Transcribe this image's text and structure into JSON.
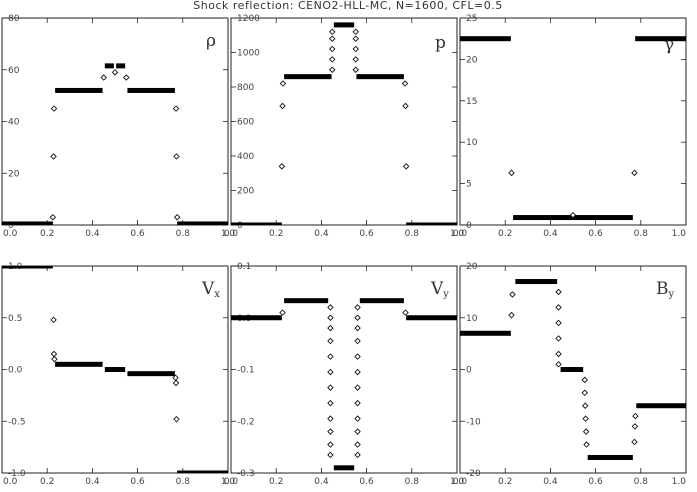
{
  "title": "Shock reflection: CENO2-HLL-MC, N=1600, CFL=0.5",
  "chart_data": [
    {
      "type": "scatter",
      "label": "ρ",
      "xlim": [
        0,
        1
      ],
      "ylim": [
        0,
        80
      ],
      "xticks": [
        "0.0",
        "0.2",
        "0.4",
        "0.6",
        "0.8",
        "1.0"
      ],
      "yticks": [
        "0",
        "20",
        "40",
        "60",
        "80"
      ],
      "segments": [
        {
          "x0": 0.0,
          "x1": 0.225,
          "y": 0.4
        },
        {
          "x0": 0.235,
          "x1": 0.445,
          "y": 52
        },
        {
          "x0": 0.455,
          "x1": 0.495,
          "y": 61.5
        },
        {
          "x0": 0.505,
          "x1": 0.545,
          "y": 61.5
        },
        {
          "x0": 0.555,
          "x1": 0.765,
          "y": 52
        },
        {
          "x0": 0.775,
          "x1": 1.0,
          "y": 0.4
        }
      ],
      "points": [
        {
          "x": 0.225,
          "y": 3
        },
        {
          "x": 0.228,
          "y": 26.5
        },
        {
          "x": 0.23,
          "y": 45
        },
        {
          "x": 0.775,
          "y": 3
        },
        {
          "x": 0.772,
          "y": 26.5
        },
        {
          "x": 0.77,
          "y": 45
        },
        {
          "x": 0.45,
          "y": 57
        },
        {
          "x": 0.5,
          "y": 59
        },
        {
          "x": 0.55,
          "y": 57
        }
      ]
    },
    {
      "type": "scatter",
      "label": "p",
      "xlim": [
        0,
        1
      ],
      "ylim": [
        0,
        1200
      ],
      "xticks": [
        "0.0",
        "0.2",
        "0.4",
        "0.6",
        "0.8",
        "1.0"
      ],
      "yticks": [
        "0",
        "200",
        "400",
        "600",
        "800",
        "1000",
        "1200"
      ],
      "segments": [
        {
          "x0": 0.0,
          "x1": 0.225,
          "y": 0
        },
        {
          "x0": 0.235,
          "x1": 0.445,
          "y": 860
        },
        {
          "x0": 0.455,
          "x1": 0.545,
          "y": 1160
        },
        {
          "x0": 0.555,
          "x1": 0.765,
          "y": 860
        },
        {
          "x0": 0.775,
          "x1": 1.0,
          "y": 0
        }
      ],
      "points": [
        {
          "x": 0.225,
          "y": 340
        },
        {
          "x": 0.228,
          "y": 690
        },
        {
          "x": 0.23,
          "y": 820
        },
        {
          "x": 0.775,
          "y": 340
        },
        {
          "x": 0.772,
          "y": 690
        },
        {
          "x": 0.77,
          "y": 820
        },
        {
          "x": 0.448,
          "y": 900
        },
        {
          "x": 0.448,
          "y": 960
        },
        {
          "x": 0.448,
          "y": 1020
        },
        {
          "x": 0.448,
          "y": 1080
        },
        {
          "x": 0.448,
          "y": 1120
        },
        {
          "x": 0.552,
          "y": 900
        },
        {
          "x": 0.552,
          "y": 960
        },
        {
          "x": 0.552,
          "y": 1020
        },
        {
          "x": 0.552,
          "y": 1080
        },
        {
          "x": 0.552,
          "y": 1120
        }
      ]
    },
    {
      "type": "scatter",
      "label": "γ",
      "xlim": [
        0,
        1
      ],
      "ylim": [
        0,
        25
      ],
      "xticks": [
        "0.0",
        "0.2",
        "0.4",
        "0.6",
        "0.8",
        "1.0"
      ],
      "yticks": [
        "0",
        "5",
        "10",
        "15",
        "20",
        "25"
      ],
      "segments": [
        {
          "x0": 0.0,
          "x1": 0.225,
          "y": 22.5
        },
        {
          "x0": 0.235,
          "x1": 0.765,
          "y": 0.9
        },
        {
          "x0": 0.775,
          "x1": 1.0,
          "y": 22.5
        }
      ],
      "points": [
        {
          "x": 0.228,
          "y": 6.3
        },
        {
          "x": 0.772,
          "y": 6.3
        },
        {
          "x": 0.5,
          "y": 1.2
        }
      ]
    },
    {
      "type": "scatter",
      "label": "Vx",
      "xlim": [
        0,
        1
      ],
      "ylim": [
        -1,
        1
      ],
      "xticks": [
        "0.0",
        "0.2",
        "0.4",
        "0.6",
        "0.8",
        "1.0"
      ],
      "yticks": [
        "-1.0",
        "-0.5",
        "0.0",
        "0.5",
        "1.0"
      ],
      "segments": [
        {
          "x0": 0.0,
          "x1": 0.225,
          "y": 1.0
        },
        {
          "x0": 0.235,
          "x1": 0.445,
          "y": 0.05
        },
        {
          "x0": 0.455,
          "x1": 0.545,
          "y": 0.0
        },
        {
          "x0": 0.555,
          "x1": 0.765,
          "y": -0.04
        },
        {
          "x0": 0.775,
          "x1": 1.0,
          "y": -1.0
        }
      ],
      "points": [
        {
          "x": 0.228,
          "y": 0.48
        },
        {
          "x": 0.23,
          "y": 0.15
        },
        {
          "x": 0.232,
          "y": 0.1
        },
        {
          "x": 0.772,
          "y": -0.48
        },
        {
          "x": 0.77,
          "y": -0.13
        },
        {
          "x": 0.768,
          "y": -0.08
        }
      ]
    },
    {
      "type": "scatter",
      "label": "Vy",
      "xlim": [
        0,
        1
      ],
      "ylim": [
        -0.3,
        0.1
      ],
      "xticks": [
        "0.0",
        "0.2",
        "0.4",
        "0.6",
        "0.8",
        "1.0"
      ],
      "yticks": [
        "-0.3",
        "-0.2",
        "-0.1",
        "0.0",
        "0.1"
      ],
      "segments": [
        {
          "x0": 0.0,
          "x1": 0.225,
          "y": 0.0
        },
        {
          "x0": 0.235,
          "x1": 0.43,
          "y": 0.033
        },
        {
          "x0": 0.455,
          "x1": 0.545,
          "y": -0.29
        },
        {
          "x0": 0.57,
          "x1": 0.765,
          "y": 0.033
        },
        {
          "x0": 0.775,
          "x1": 1.0,
          "y": 0.0
        }
      ],
      "points": [
        {
          "x": 0.228,
          "y": 0.01
        },
        {
          "x": 0.772,
          "y": 0.01
        },
        {
          "x": 0.44,
          "y": 0.02
        },
        {
          "x": 0.44,
          "y": 0.0
        },
        {
          "x": 0.44,
          "y": -0.02
        },
        {
          "x": 0.44,
          "y": -0.045
        },
        {
          "x": 0.44,
          "y": -0.075
        },
        {
          "x": 0.44,
          "y": -0.105
        },
        {
          "x": 0.44,
          "y": -0.135
        },
        {
          "x": 0.44,
          "y": -0.165
        },
        {
          "x": 0.44,
          "y": -0.195
        },
        {
          "x": 0.44,
          "y": -0.22
        },
        {
          "x": 0.44,
          "y": -0.245
        },
        {
          "x": 0.44,
          "y": -0.265
        },
        {
          "x": 0.56,
          "y": 0.02
        },
        {
          "x": 0.56,
          "y": 0.0
        },
        {
          "x": 0.56,
          "y": -0.02
        },
        {
          "x": 0.56,
          "y": -0.045
        },
        {
          "x": 0.56,
          "y": -0.075
        },
        {
          "x": 0.56,
          "y": -0.105
        },
        {
          "x": 0.56,
          "y": -0.135
        },
        {
          "x": 0.56,
          "y": -0.165
        },
        {
          "x": 0.56,
          "y": -0.195
        },
        {
          "x": 0.56,
          "y": -0.22
        },
        {
          "x": 0.56,
          "y": -0.245
        },
        {
          "x": 0.56,
          "y": -0.265
        }
      ]
    },
    {
      "type": "scatter",
      "label": "By",
      "xlim": [
        0,
        1
      ],
      "ylim": [
        -20,
        20
      ],
      "xticks": [
        "0.0",
        "0.2",
        "0.4",
        "0.6",
        "0.8",
        "1.0"
      ],
      "yticks": [
        "-20",
        "-10",
        "0",
        "10",
        "20"
      ],
      "segments": [
        {
          "x0": 0.0,
          "x1": 0.225,
          "y": 7
        },
        {
          "x0": 0.245,
          "x1": 0.43,
          "y": 17
        },
        {
          "x0": 0.445,
          "x1": 0.545,
          "y": 0
        },
        {
          "x0": 0.565,
          "x1": 0.765,
          "y": -17
        },
        {
          "x0": 0.78,
          "x1": 1.0,
          "y": -7
        }
      ],
      "points": [
        {
          "x": 0.228,
          "y": 10.5
        },
        {
          "x": 0.232,
          "y": 14.5
        },
        {
          "x": 0.436,
          "y": 15
        },
        {
          "x": 0.436,
          "y": 12
        },
        {
          "x": 0.436,
          "y": 9
        },
        {
          "x": 0.436,
          "y": 6
        },
        {
          "x": 0.436,
          "y": 3
        },
        {
          "x": 0.436,
          "y": 1
        },
        {
          "x": 0.552,
          "y": -2
        },
        {
          "x": 0.552,
          "y": -4.5
        },
        {
          "x": 0.554,
          "y": -7
        },
        {
          "x": 0.556,
          "y": -9.5
        },
        {
          "x": 0.558,
          "y": -12
        },
        {
          "x": 0.56,
          "y": -14.5
        },
        {
          "x": 0.772,
          "y": -14
        },
        {
          "x": 0.774,
          "y": -11
        },
        {
          "x": 0.776,
          "y": -9
        }
      ]
    }
  ]
}
